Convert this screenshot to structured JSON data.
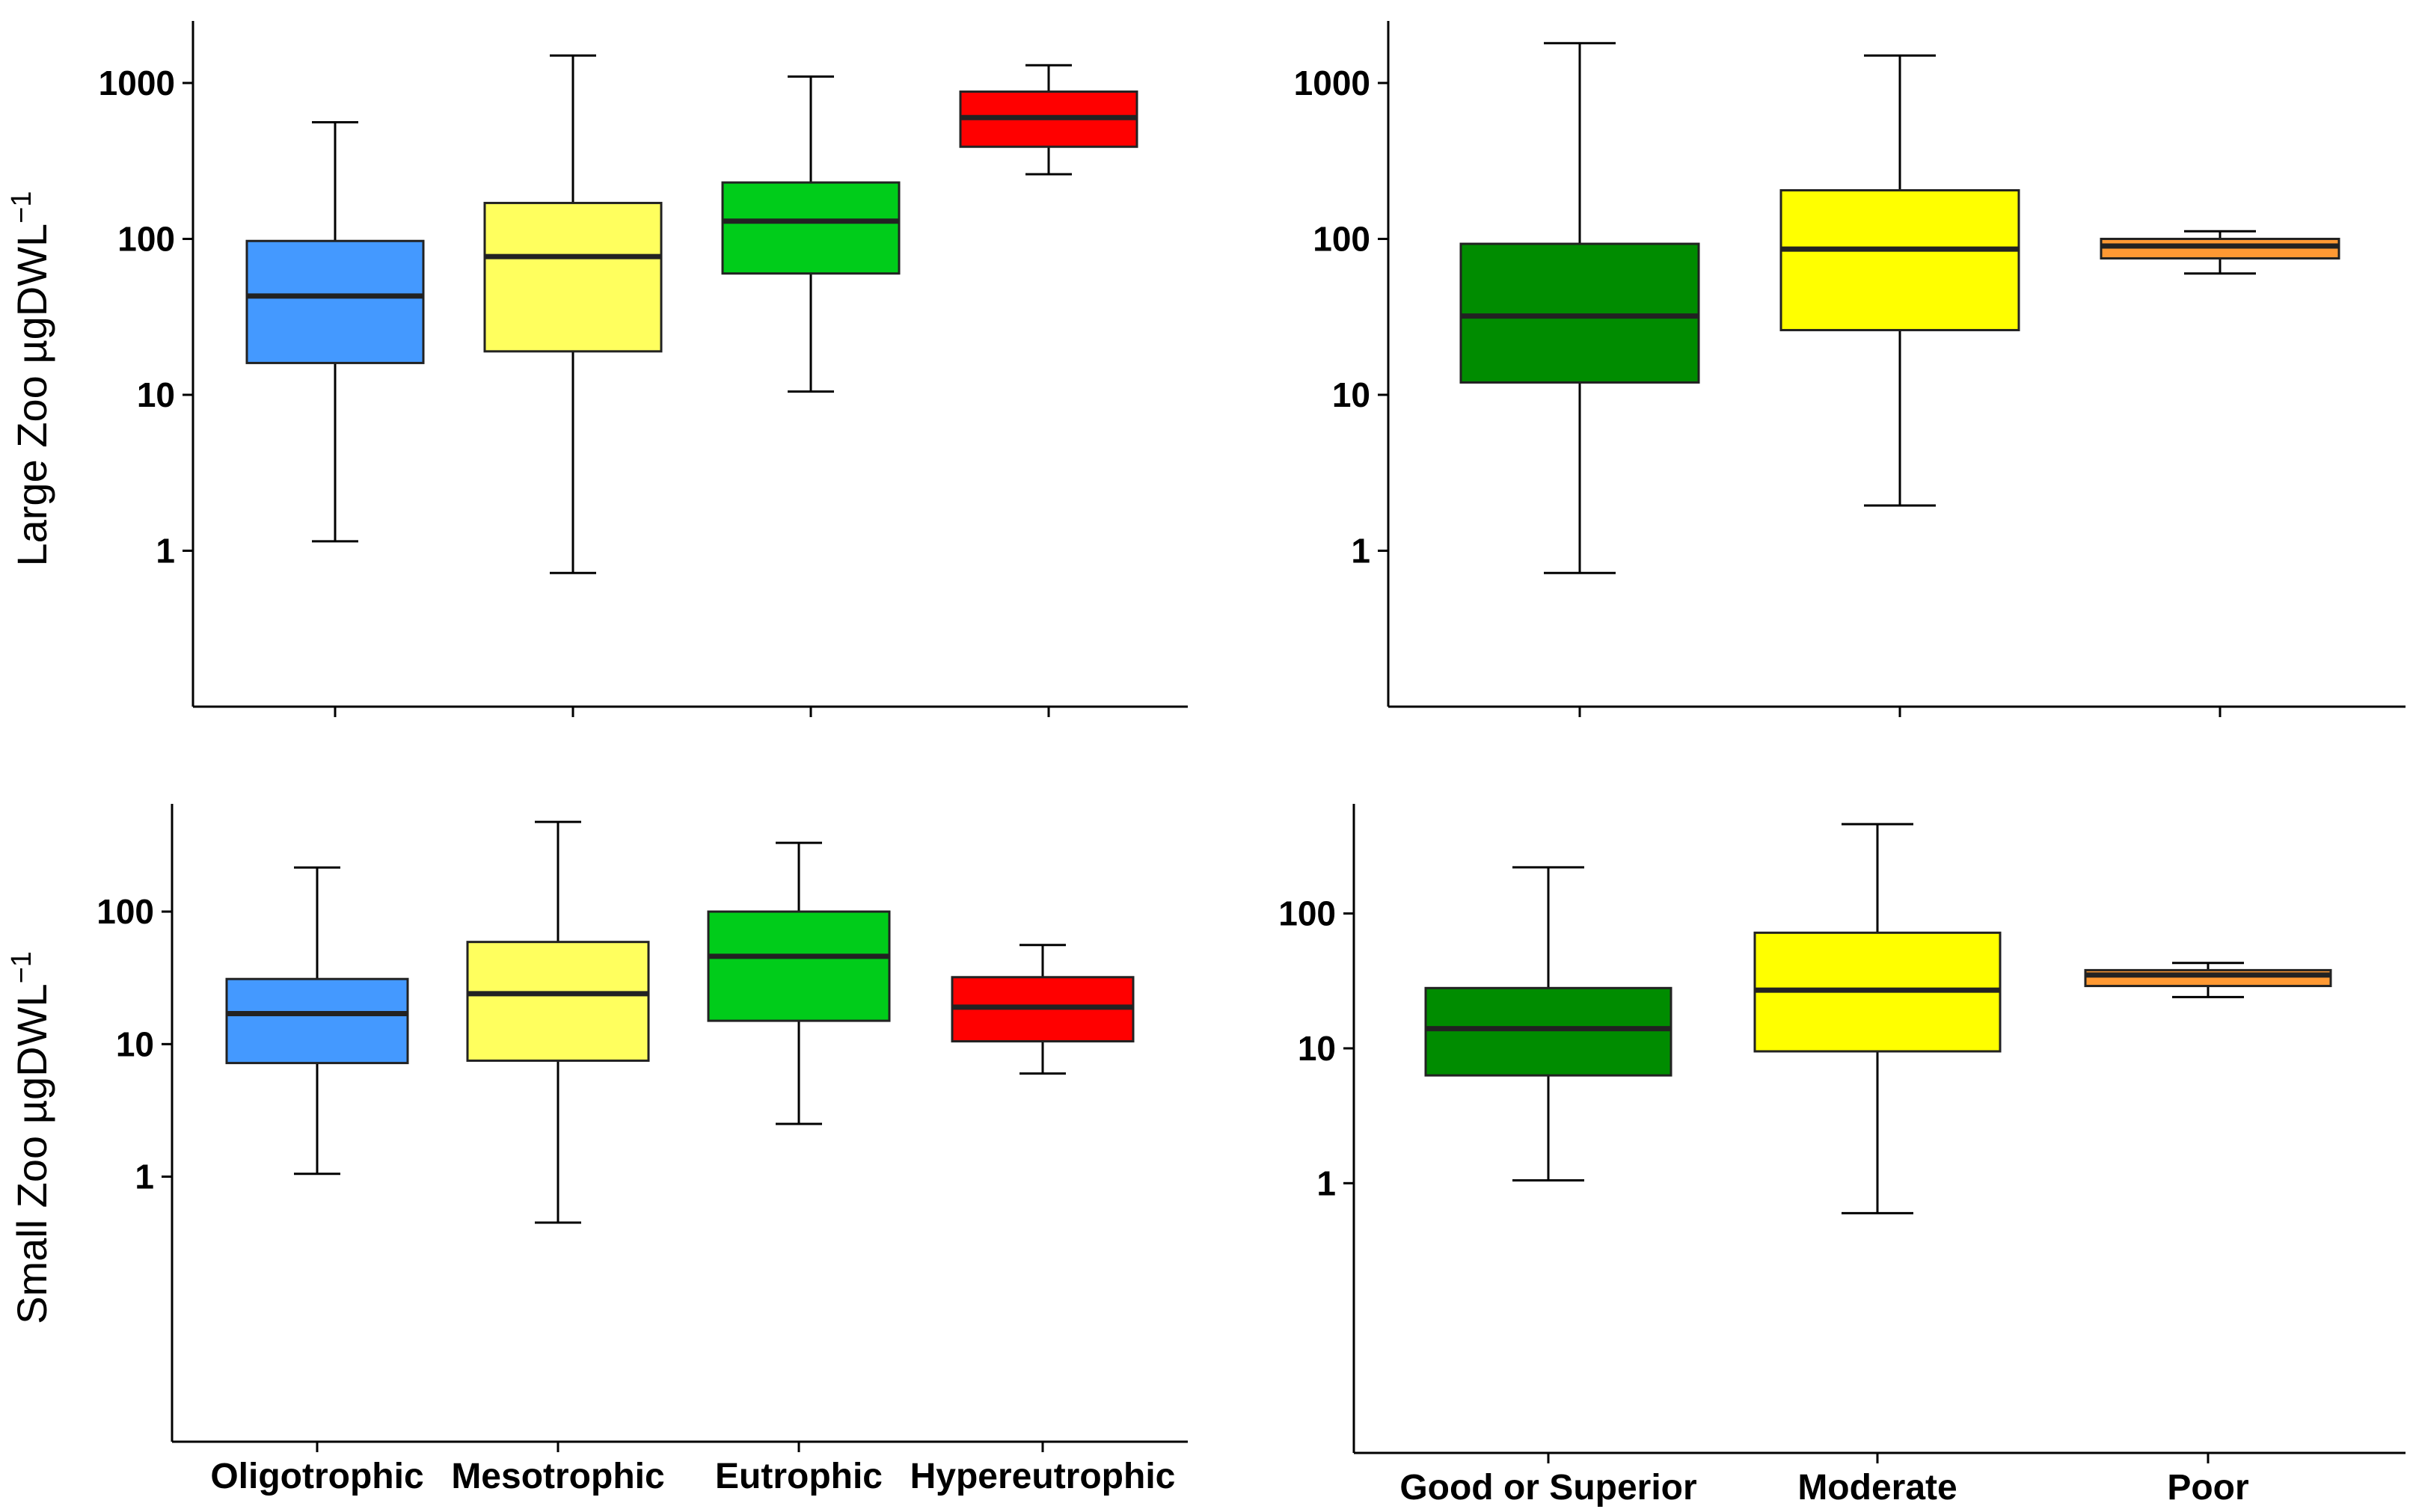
{
  "chart_data": [
    {
      "id": "large-zoo-trophic",
      "type": "box",
      "yscale": "log10",
      "ylabel": "Large Zoo µgDWL",
      "ylabel_superscript": "−1",
      "ylim": [
        0.1,
        2500
      ],
      "yticks": [
        1,
        10,
        100,
        1000
      ],
      "ytick_labels": [
        "1",
        "10",
        "100",
        "1000"
      ],
      "categories": [
        "Oligotrophic",
        "Mesotrophic",
        "Eutrophic",
        "Hypereutrophic"
      ],
      "show_category_labels": false,
      "colors": [
        "#4499ff",
        "#ffff5e",
        "#00cc1a",
        "#ff0000"
      ],
      "boxes": [
        {
          "whisker_low": 1.15,
          "q1": 16,
          "median": 43,
          "q3": 97,
          "whisker_high": 560
        },
        {
          "whisker_low": 0.72,
          "q1": 19,
          "median": 77,
          "q3": 170,
          "whisker_high": 1500
        },
        {
          "whisker_low": 10.5,
          "q1": 60,
          "median": 130,
          "q3": 230,
          "whisker_high": 1100
        },
        {
          "whisker_low": 260,
          "q1": 390,
          "median": 600,
          "q3": 880,
          "whisker_high": 1300
        }
      ]
    },
    {
      "id": "large-zoo-quality",
      "type": "box",
      "yscale": "log10",
      "ylabel": "",
      "ylim": [
        0.1,
        2500
      ],
      "yticks": [
        1,
        10,
        100,
        1000
      ],
      "ytick_labels": [
        "1",
        "10",
        "100",
        "1000"
      ],
      "categories": [
        "Good or Superior",
        "Moderate",
        "Poor"
      ],
      "show_category_labels": false,
      "colors": [
        "#008c00",
        "#ffff00",
        "#ff9933"
      ],
      "boxes": [
        {
          "whisker_low": 0.72,
          "q1": 12,
          "median": 32,
          "q3": 93,
          "whisker_high": 1800
        },
        {
          "whisker_low": 1.95,
          "q1": 26,
          "median": 86,
          "q3": 205,
          "whisker_high": 1500
        },
        {
          "whisker_low": 60,
          "q1": 75,
          "median": 90,
          "q3": 100,
          "whisker_high": 112
        }
      ]
    },
    {
      "id": "small-zoo-trophic",
      "type": "box",
      "yscale": "log10",
      "ylabel": "Small Zoo µgDWL",
      "ylabel_superscript": "−1",
      "ylim": [
        0.01,
        650
      ],
      "yticks": [
        1,
        10,
        100
      ],
      "ytick_labels": [
        "1",
        "10",
        "100"
      ],
      "categories": [
        "Oligotrophic",
        "Mesotrophic",
        "Eutrophic",
        "Hypereutrophic"
      ],
      "show_category_labels": true,
      "colors": [
        "#4499ff",
        "#ffff5e",
        "#00cc1a",
        "#ff0000"
      ],
      "boxes": [
        {
          "whisker_low": 1.05,
          "q1": 7.2,
          "median": 17,
          "q3": 31,
          "whisker_high": 215
        },
        {
          "whisker_low": 0.45,
          "q1": 7.5,
          "median": 24,
          "q3": 59,
          "whisker_high": 475
        },
        {
          "whisker_low": 2.5,
          "q1": 15,
          "median": 46,
          "q3": 100,
          "whisker_high": 330
        },
        {
          "whisker_low": 6,
          "q1": 10.5,
          "median": 19,
          "q3": 32,
          "whisker_high": 56
        }
      ]
    },
    {
      "id": "small-zoo-quality",
      "type": "box",
      "yscale": "log10",
      "ylabel": "",
      "ylim": [
        0.01,
        650
      ],
      "yticks": [
        1,
        10,
        100
      ],
      "ytick_labels": [
        "1",
        "10",
        "100"
      ],
      "categories": [
        "Good or Superior",
        "Moderate",
        "Poor"
      ],
      "show_category_labels": true,
      "colors": [
        "#008c00",
        "#ffff00",
        "#ff9933"
      ],
      "boxes": [
        {
          "whisker_low": 1.05,
          "q1": 6.3,
          "median": 14,
          "q3": 28,
          "whisker_high": 220
        },
        {
          "whisker_low": 0.6,
          "q1": 9.5,
          "median": 27,
          "q3": 72,
          "whisker_high": 460
        },
        {
          "whisker_low": 24,
          "q1": 29,
          "median": 35,
          "q3": 38,
          "whisker_high": 43
        }
      ]
    }
  ]
}
